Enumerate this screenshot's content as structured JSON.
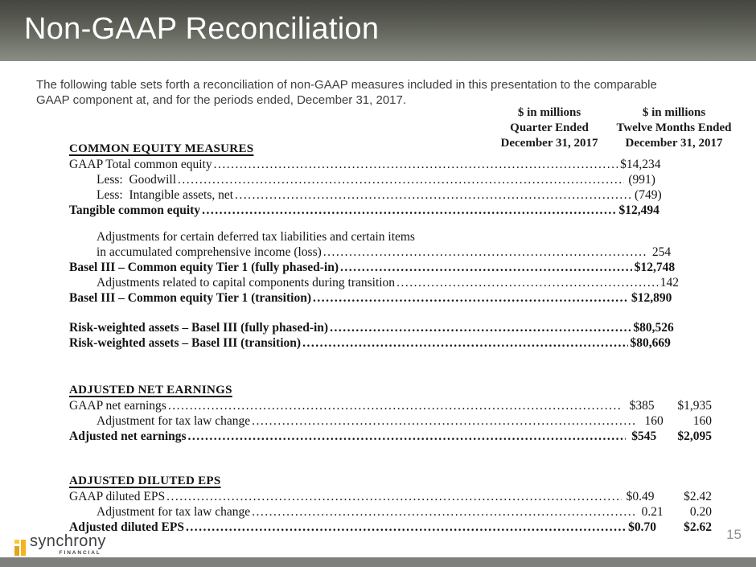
{
  "slide": {
    "title": "Non-GAAP Reconciliation",
    "page_number": "15"
  },
  "intro": {
    "line1": "The following table sets forth a reconciliation of non-GAAP measures included in this presentation to the comparable",
    "line2": "GAAP component at, and for the periods ended, December 31, 2017."
  },
  "columns": [
    {
      "unit": "$ in millions",
      "period": "Quarter Ended",
      "date": "December 31, 2017"
    },
    {
      "unit": "$ in millions",
      "period": "Twelve Months Ended",
      "date": "December 31, 2017"
    }
  ],
  "table": {
    "rows": [
      {
        "label": "COMMON EQUITY MEASURES"
      },
      {
        "label": "GAAP Total common equity",
        "v1": "$14,234",
        "v2": ""
      },
      {
        "label": "Less:  Goodwill",
        "v1": "(991)",
        "v2": ""
      },
      {
        "label": "Less:  Intangible assets, net",
        "v1": "(749)",
        "v2": ""
      },
      {
        "label": "Tangible common equity",
        "v1": "$12,494",
        "v2": ""
      },
      {
        "label": "Adjustments for certain deferred tax liabilities and certain items"
      },
      {
        "label": "in accumulated comprehensive income (loss)",
        "v1": "254",
        "v2": ""
      },
      {
        "label": "Basel III – Common equity Tier 1 (fully phased-in)",
        "v1": "$12,748",
        "v2": ""
      },
      {
        "label": "Adjustments related to capital components during transition",
        "v1": "142",
        "v2": ""
      },
      {
        "label": "Basel III – Common equity Tier 1 (transition)",
        "v1": "$12,890",
        "v2": ""
      },
      {
        "label": "Risk-weighted assets – Basel III (fully phased-in)",
        "v1": "$80,526",
        "v2": ""
      },
      {
        "label": "Risk-weighted assets – Basel III (transition)",
        "v1": "$80,669",
        "v2": ""
      },
      {
        "label": "ADJUSTED NET EARNINGS"
      },
      {
        "label": "GAAP net earnings",
        "v1": "$385",
        "v2": "$1,935"
      },
      {
        "label": "Adjustment for tax law change",
        "v1": "160",
        "v2": "160"
      },
      {
        "label": "Adjusted net earnings",
        "v1": "$545",
        "v2": "$2,095"
      },
      {
        "label": "ADJUSTED DILUTED EPS"
      },
      {
        "label": "GAAP diluted EPS",
        "v1": "$0.49",
        "v2": "$2.42"
      },
      {
        "label": "Adjustment for tax law change",
        "v1": "0.21",
        "v2": "0.20"
      },
      {
        "label": "Adjusted diluted EPS",
        "v1": "$0.70",
        "v2": "$2.62"
      }
    ]
  },
  "logo": {
    "brand": "synchrony",
    "sub": "FINANCIAL"
  },
  "colors": {
    "header_gradient_top": "#44463f",
    "header_gradient_bottom": "#8a8e83",
    "title_text": "#ffffff",
    "body_text": "#3e3e3e",
    "table_text": "#141414",
    "logo_gold": "#f5b31c",
    "logo_gold_dark": "#e2a31f",
    "page_number_text": "#8f8f8f",
    "bottom_bar": "#7e807b"
  }
}
